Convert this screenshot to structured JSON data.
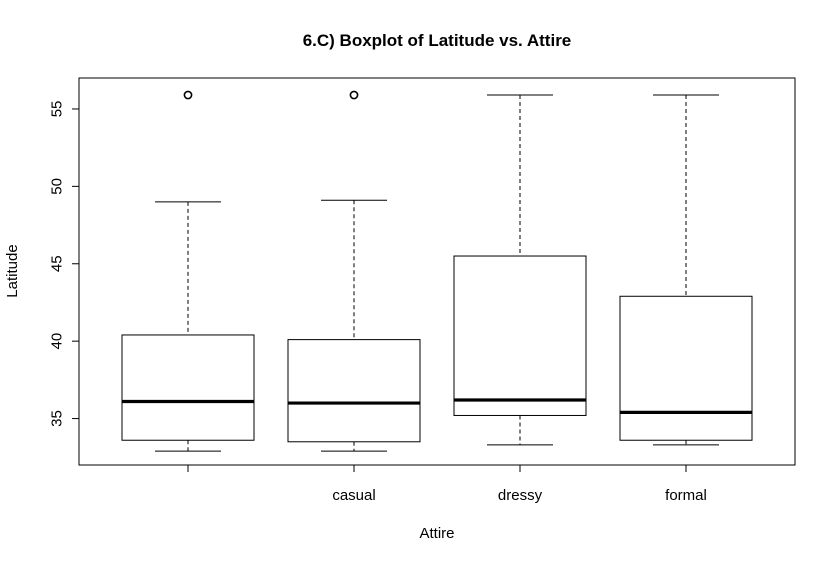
{
  "chart_data": {
    "type": "boxplot",
    "title": "6.C) Boxplot of Latitude vs. Attire",
    "xlabel": "Attire",
    "ylabel": "Latitude",
    "categories": [
      "",
      "casual",
      "dressy",
      "formal"
    ],
    "boxes": [
      {
        "category": "",
        "whisker_low": 32.9,
        "q1": 33.6,
        "median": 36.1,
        "q3": 40.4,
        "whisker_high": 49.0,
        "outliers": [
          55.9
        ]
      },
      {
        "category": "casual",
        "whisker_low": 32.9,
        "q1": 33.5,
        "median": 36.0,
        "q3": 40.1,
        "whisker_high": 49.1,
        "outliers": [
          55.9
        ]
      },
      {
        "category": "dressy",
        "whisker_low": 33.3,
        "q1": 35.2,
        "median": 36.2,
        "q3": 45.5,
        "whisker_high": 55.9,
        "outliers": []
      },
      {
        "category": "formal",
        "whisker_low": 33.3,
        "q1": 33.6,
        "median": 35.4,
        "q3": 42.9,
        "whisker_high": 55.9,
        "outliers": []
      }
    ],
    "y_ticks": [
      35,
      40,
      45,
      50,
      55
    ],
    "ylim": [
      32.0,
      57.0
    ],
    "grid": false,
    "legend": "none"
  }
}
